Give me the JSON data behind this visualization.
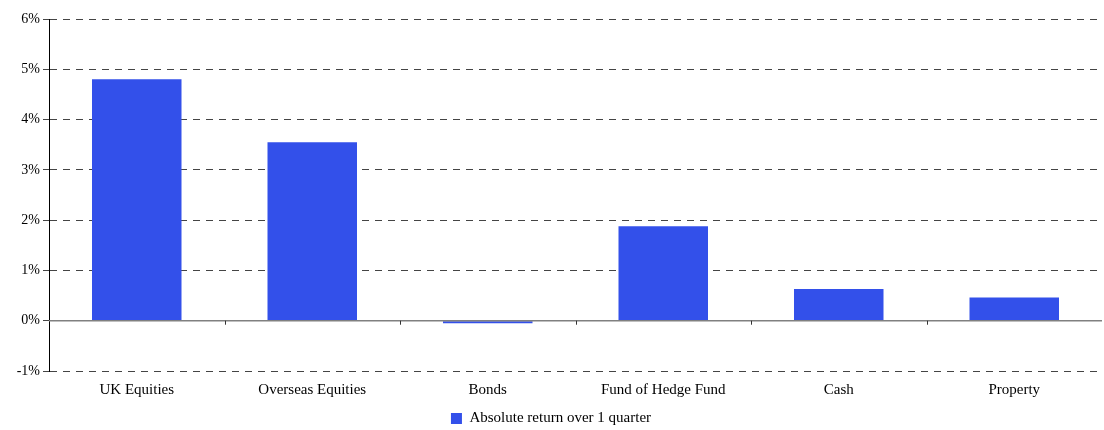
{
  "chart_data": {
    "type": "bar",
    "categories": [
      "UK Equities",
      "Overseas Equities",
      "Bonds",
      "Fund of Hedge Fund",
      "Cash",
      "Property"
    ],
    "series": [
      {
        "name": "Absolute return over 1 quarter",
        "color": "#3350ea",
        "values": [
          4.8,
          3.55,
          -0.05,
          1.88,
          0.63,
          0.46
        ]
      }
    ],
    "ylim": [
      -1,
      6
    ],
    "yticks": [
      {
        "value": -1,
        "label": "-1%"
      },
      {
        "value": 0,
        "label": "0%"
      },
      {
        "value": 1,
        "label": "1%"
      },
      {
        "value": 2,
        "label": "2%"
      },
      {
        "value": 3,
        "label": "3%"
      },
      {
        "value": 4,
        "label": "4%"
      },
      {
        "value": 5,
        "label": "5%"
      },
      {
        "value": 6,
        "label": "6%"
      }
    ],
    "grid": "y",
    "legend": "bottom"
  }
}
